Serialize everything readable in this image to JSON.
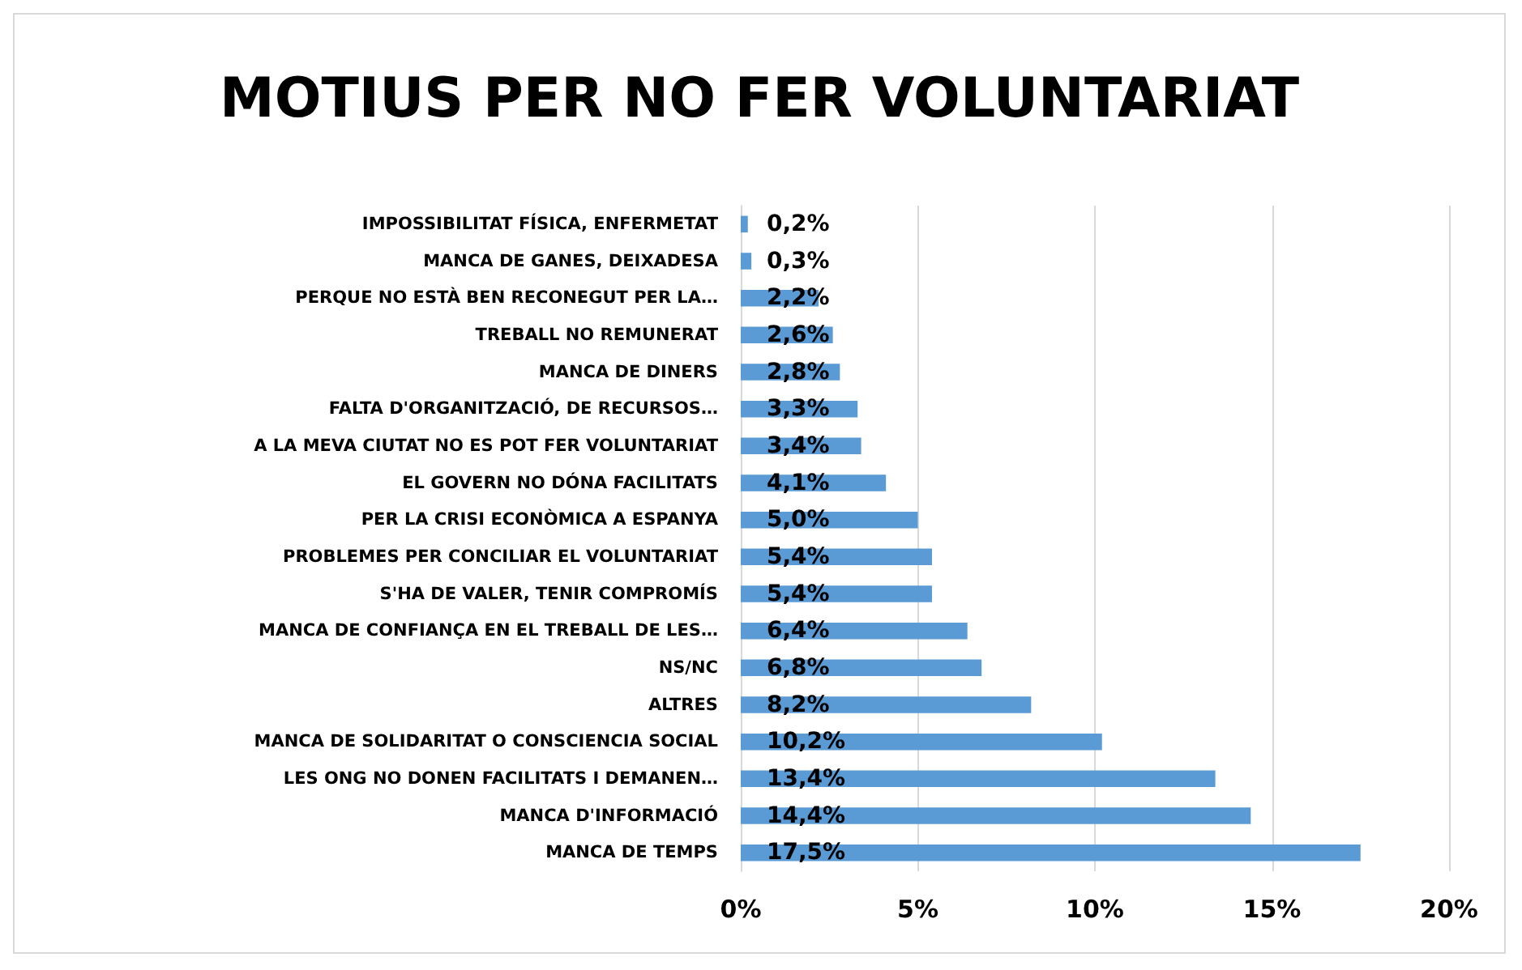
{
  "chart_data": {
    "type": "bar",
    "orientation": "horizontal",
    "title": "MOTIUS PER NO FER VOLUNTARIAT",
    "categories": [
      "IMPOSSIBILITAT FÍSICA, ENFERMETAT",
      "MANCA DE GANES, DEIXADESA",
      "PERQUE NO ESTÀ BEN RECONEGUT PER LA…",
      "TREBALL NO REMUNERAT",
      "MANCA DE DINERS",
      "FALTA D'ORGANITZACIÓ, DE RECURSOS…",
      "A LA MEVA CIUTAT NO ES POT FER VOLUNTARIAT",
      "EL GOVERN NO DÓNA FACILITATS",
      "PER LA CRISI ECONÒMICA A ESPANYA",
      "PROBLEMES PER CONCILIAR EL VOLUNTARIAT",
      "S'HA DE VALER, TENIR COMPROMÍS",
      "MANCA DE CONFIANÇA EN EL TREBALL DE LES…",
      "NS/NC",
      "ALTRES",
      "MANCA DE SOLIDARITAT O CONSCIENCIA SOCIAL",
      "LES ONG NO DONEN FACILITATS I DEMANEN…",
      "MANCA D'INFORMACIÓ",
      "MANCA DE TEMPS"
    ],
    "values": [
      0.2,
      0.3,
      2.2,
      2.6,
      2.8,
      3.3,
      3.4,
      4.1,
      5.0,
      5.4,
      5.4,
      6.4,
      6.8,
      8.2,
      10.2,
      13.4,
      14.4,
      17.5
    ],
    "value_labels": [
      "0,2%",
      "0,3%",
      "2,2%",
      "2,6%",
      "2,8%",
      "3,3%",
      "3,4%",
      "4,1%",
      "5,0%",
      "5,4%",
      "5,4%",
      "6,4%",
      "6,8%",
      "8,2%",
      "10,2%",
      "13,4%",
      "14,4%",
      "17,5%"
    ],
    "color": "#5b9bd5",
    "xlim": [
      0,
      20
    ],
    "xticks": [
      {
        "value": 0,
        "label": "0%"
      },
      {
        "value": 5,
        "label": "5%"
      },
      {
        "value": 10,
        "label": "10%"
      },
      {
        "value": 15,
        "label": "15%"
      },
      {
        "value": 20,
        "label": "20%"
      }
    ],
    "grid": "x"
  }
}
